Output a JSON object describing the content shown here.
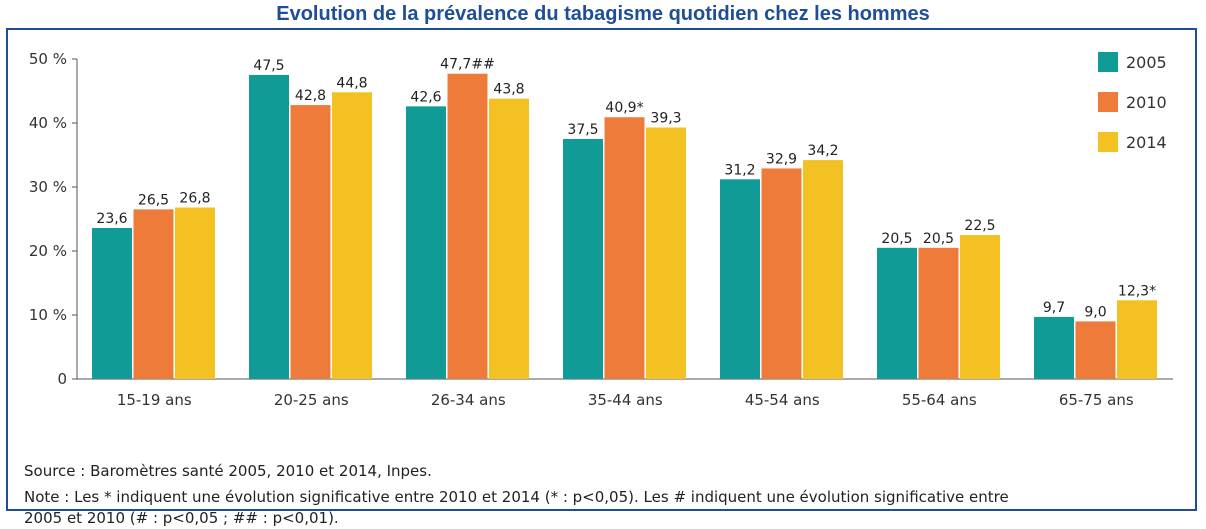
{
  "title": "Evolution de la prévalence du tabagisme quotidien chez les hommes",
  "chart_data": {
    "type": "bar",
    "categories": [
      "15-19 ans",
      "20-25 ans",
      "26-34 ans",
      "35-44 ans",
      "45-54 ans",
      "55-64 ans",
      "65-75 ans"
    ],
    "series": [
      {
        "name": "2005",
        "color": "#109b96",
        "values": [
          23.6,
          47.5,
          42.6,
          37.5,
          31.2,
          20.5,
          9.7
        ],
        "labels": [
          "23,6",
          "47,5",
          "42,6",
          "37,5",
          "31,2",
          "20,5",
          "9,7"
        ]
      },
      {
        "name": "2010",
        "color": "#ef7b3b",
        "values": [
          26.5,
          42.8,
          47.7,
          40.9,
          32.9,
          20.5,
          9.0
        ],
        "labels": [
          "26,5",
          "42,8",
          "47,7##",
          "40,9*",
          "32,9",
          "20,5",
          "9,0"
        ]
      },
      {
        "name": "2014",
        "color": "#f4c122",
        "values": [
          26.8,
          44.8,
          43.8,
          39.3,
          34.2,
          22.5,
          12.3
        ],
        "labels": [
          "26,8",
          "44,8",
          "43,8",
          "39,3",
          "34,2",
          "22,5",
          "12,3*"
        ]
      }
    ],
    "ylim": [
      0,
      50
    ],
    "yticks": [
      0,
      10,
      20,
      30,
      40,
      50
    ],
    "ytick_labels": [
      "0",
      "10 %",
      "20 %",
      "30 %",
      "40 %",
      "50 %"
    ],
    "xlabel": "",
    "ylabel": "",
    "grid": false,
    "legend_position": "top-right"
  },
  "source": "Source : Baromètres santé 2005, 2010 et 2014, Inpes.",
  "note_line1": "Note : Les * indiquent une évolution significative entre 2010 et 2014 (* : p<0,05). Les # indiquent une évolution significative entre",
  "note_line2": "2005 et 2010 (# : p<0,05 ; ## : p<0,01)."
}
